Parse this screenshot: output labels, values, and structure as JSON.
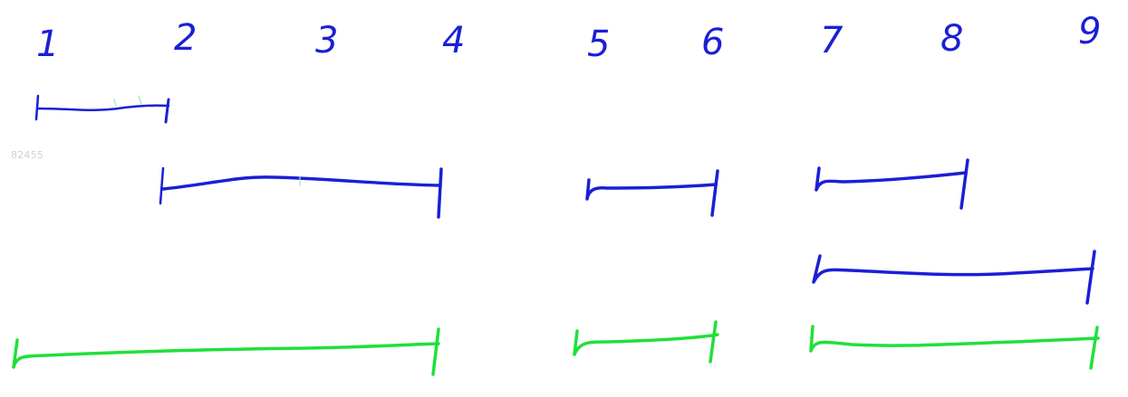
{
  "colors": {
    "ink_blue": "#1a1fd6",
    "ink_green": "#1fe03a",
    "watermark": "#d0d0d0"
  },
  "watermark": "82455",
  "tick_labels": [
    "1",
    "2",
    "3",
    "4",
    "5",
    "6",
    "7",
    "8",
    "9"
  ],
  "segments": [
    {
      "row": 1,
      "color": "blue",
      "from": "1",
      "to": "2"
    },
    {
      "row": 2,
      "color": "blue",
      "from": "2",
      "to": "4"
    },
    {
      "row": 2,
      "color": "blue",
      "from": "5",
      "to": "6"
    },
    {
      "row": 2,
      "color": "blue",
      "from": "7",
      "to": "8"
    },
    {
      "row": 3,
      "color": "blue",
      "from": "7",
      "to": "9"
    },
    {
      "row": 4,
      "color": "green",
      "from": "1",
      "to": "4"
    },
    {
      "row": 4,
      "color": "green",
      "from": "5",
      "to": "6"
    },
    {
      "row": 4,
      "color": "green",
      "from": "7",
      "to": "9"
    }
  ]
}
